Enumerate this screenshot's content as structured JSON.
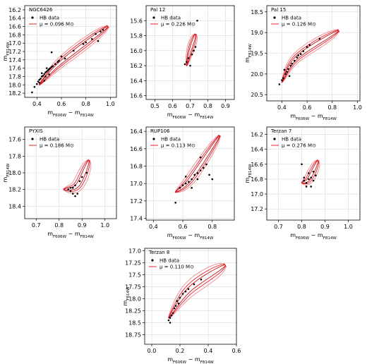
{
  "chart_data": [
    {
      "type": "scatter",
      "title": "NGC6426",
      "xlim": [
        0.3,
        1.05
      ],
      "ylim": [
        18.3,
        16.1
      ],
      "xticks": [
        0.4,
        0.6,
        0.8,
        1.0
      ],
      "yticks": [
        16.2,
        16.4,
        16.6,
        16.8,
        17.0,
        17.2,
        17.4,
        17.6,
        17.8,
        18.0,
        18.2
      ],
      "xlabel": "m_F606W − m_F814W",
      "ylabel": "m_F814W",
      "legend": [
        "HB data",
        "μ = 0.096 M⊙"
      ],
      "legend_position": "top-left",
      "grid": true,
      "contour": {
        "center": [
          [
            0.42,
            18.0
          ],
          [
            0.6,
            17.45
          ],
          [
            0.98,
            16.6
          ]
        ],
        "widths": [
          0.018,
          0.04,
          0.07
        ],
        "color": "#e8202a"
      },
      "hb_data": [
        [
          0.38,
          18.05
        ],
        [
          0.4,
          17.98
        ],
        [
          0.41,
          17.92
        ],
        [
          0.42,
          17.88
        ],
        [
          0.43,
          17.85
        ],
        [
          0.44,
          17.8
        ],
        [
          0.45,
          17.78
        ],
        [
          0.46,
          17.74
        ],
        [
          0.47,
          17.7
        ],
        [
          0.48,
          17.68
        ],
        [
          0.49,
          17.65
        ],
        [
          0.5,
          17.62
        ],
        [
          0.51,
          17.6
        ],
        [
          0.52,
          17.57
        ],
        [
          0.53,
          17.55
        ],
        [
          0.55,
          17.5
        ],
        [
          0.57,
          17.45
        ],
        [
          0.44,
          17.72
        ],
        [
          0.47,
          17.8
        ],
        [
          0.52,
          17.22
        ],
        [
          0.6,
          17.32
        ],
        [
          0.63,
          17.37
        ],
        [
          0.7,
          17.18
        ],
        [
          0.78,
          17.02
        ],
        [
          0.8,
          16.98
        ],
        [
          0.85,
          16.9
        ],
        [
          0.88,
          16.78
        ],
        [
          0.92,
          16.72
        ],
        [
          0.94,
          16.68
        ],
        [
          0.9,
          16.95
        ],
        [
          0.36,
          18.18
        ],
        [
          0.46,
          17.9
        ],
        [
          0.5,
          17.75
        ],
        [
          0.42,
          17.95
        ],
        [
          0.48,
          17.6
        ],
        [
          0.58,
          17.42
        ]
      ]
    },
    {
      "type": "scatter",
      "title": "Pal 12",
      "xlim": [
        0.45,
        0.95
      ],
      "ylim": [
        16.65,
        15.4
      ],
      "xticks": [
        0.5,
        0.6,
        0.7,
        0.8,
        0.9
      ],
      "yticks": [
        15.6,
        15.8,
        16.0,
        16.2,
        16.4,
        16.6
      ],
      "xlabel": "m_F606W − m_F814W",
      "ylabel": "",
      "legend": [
        "HB data",
        "μ = 0.226 M⊙"
      ],
      "legend_position": "top-left",
      "grid": true,
      "contour": {
        "center": [
          [
            0.68,
            16.2
          ],
          [
            0.7,
            16.0
          ],
          [
            0.73,
            15.78
          ]
        ],
        "widths": [
          0.01,
          0.02,
          0.032
        ],
        "color": "#e8202a"
      },
      "hb_data": [
        [
          0.68,
          16.15
        ],
        [
          0.7,
          16.2
        ],
        [
          0.71,
          16.05
        ],
        [
          0.72,
          16.0
        ],
        [
          0.69,
          16.1
        ],
        [
          0.73,
          15.95
        ],
        [
          0.74,
          15.6
        ],
        [
          0.67,
          16.18
        ]
      ]
    },
    {
      "type": "scatter",
      "title": "Pal 15",
      "xlim": [
        0.28,
        1.02
      ],
      "ylim": [
        20.65,
        18.35
      ],
      "xticks": [
        0.4,
        0.6,
        0.8,
        1.0
      ],
      "yticks": [
        18.5,
        19.0,
        19.5,
        20.0,
        20.5
      ],
      "xlabel": "m_F606W − m_F814W",
      "ylabel": "m_F814W",
      "legend": [
        "HB data",
        "μ = 0.126 M⊙"
      ],
      "legend_position": "top-left",
      "grid": true,
      "contour": {
        "center": [
          [
            0.4,
            20.2
          ],
          [
            0.52,
            19.6
          ],
          [
            0.85,
            18.95
          ]
        ],
        "widths": [
          0.016,
          0.038,
          0.065
        ],
        "color": "#e8202a"
      },
      "hb_data": [
        [
          0.38,
          20.25
        ],
        [
          0.4,
          20.15
        ],
        [
          0.41,
          20.1
        ],
        [
          0.43,
          20.0
        ],
        [
          0.44,
          19.95
        ],
        [
          0.45,
          19.88
        ],
        [
          0.47,
          19.8
        ],
        [
          0.48,
          19.75
        ],
        [
          0.5,
          19.68
        ],
        [
          0.52,
          19.6
        ],
        [
          0.55,
          19.52
        ],
        [
          0.57,
          19.45
        ],
        [
          0.6,
          19.35
        ],
        [
          0.62,
          19.3
        ],
        [
          0.7,
          19.15
        ],
        [
          0.42,
          19.9
        ],
        [
          0.46,
          20.05
        ],
        [
          0.53,
          19.55
        ]
      ]
    },
    {
      "type": "scatter",
      "title": "PYXIS",
      "xlim": [
        0.65,
        1.05
      ],
      "ylim": [
        18.55,
        17.45
      ],
      "xticks": [
        0.7,
        0.8,
        0.9,
        1.0
      ],
      "yticks": [
        17.6,
        17.8,
        18.0,
        18.2,
        18.4
      ],
      "xlabel": "m_F606W − m_F814W",
      "ylabel": "m_F814W",
      "legend": [
        "HB data",
        "μ = 0.186 M⊙"
      ],
      "legend_position": "top-left",
      "grid": true,
      "contour": {
        "center": [
          [
            0.82,
            18.2
          ],
          [
            0.88,
            18.15
          ],
          [
            0.93,
            17.85
          ]
        ],
        "widths": [
          0.018,
          0.025,
          0.035
        ],
        "color": "#e8202a"
      },
      "hb_data": [
        [
          0.84,
          18.2
        ],
        [
          0.85,
          18.22
        ],
        [
          0.86,
          18.18
        ],
        [
          0.87,
          18.15
        ],
        [
          0.88,
          18.25
        ],
        [
          0.86,
          18.25
        ],
        [
          0.89,
          18.1
        ],
        [
          0.9,
          18.05
        ],
        [
          0.92,
          18.0
        ],
        [
          0.85,
          18.18
        ],
        [
          0.87,
          18.28
        ]
      ]
    },
    {
      "type": "scatter",
      "title": "RUP106",
      "xlim": [
        0.35,
        0.95
      ],
      "ylim": [
        17.42,
        16.35
      ],
      "xticks": [
        0.4,
        0.6,
        0.8
      ],
      "yticks": [
        16.4,
        16.6,
        16.8,
        17.0,
        17.2,
        17.4
      ],
      "xlabel": "m_F606W − m_F814W",
      "ylabel": "",
      "legend": [
        "HB data",
        "μ = 0.113 M⊙"
      ],
      "legend_position": "top-left",
      "grid": true,
      "contour": {
        "center": [
          [
            0.55,
            17.1
          ],
          [
            0.65,
            16.95
          ],
          [
            0.85,
            16.45
          ]
        ],
        "widths": [
          0.02,
          0.035,
          0.045
        ],
        "color": "#e8202a"
      },
      "hb_data": [
        [
          0.58,
          17.05
        ],
        [
          0.6,
          17.02
        ],
        [
          0.62,
          17.0
        ],
        [
          0.64,
          16.98
        ],
        [
          0.66,
          16.95
        ],
        [
          0.68,
          16.9
        ],
        [
          0.7,
          16.88
        ],
        [
          0.72,
          16.85
        ],
        [
          0.74,
          16.82
        ],
        [
          0.76,
          16.78
        ],
        [
          0.78,
          16.9
        ],
        [
          0.8,
          16.95
        ],
        [
          0.72,
          16.7
        ],
        [
          0.55,
          17.22
        ],
        [
          0.66,
          17.05
        ],
        [
          0.7,
          16.95
        ],
        [
          0.62,
          16.92
        ]
      ]
    },
    {
      "type": "scatter",
      "title": "Terzan 7",
      "xlim": [
        0.65,
        1.05
      ],
      "ylim": [
        17.35,
        16.1
      ],
      "xticks": [
        0.7,
        0.8,
        0.9,
        1.0
      ],
      "yticks": [
        16.2,
        16.4,
        16.6,
        16.8,
        17.0,
        17.2
      ],
      "xlabel": "m_F606W − m_F814W",
      "ylabel": "m_F814W",
      "legend": [
        "HB data",
        "μ = 0.276 M⊙"
      ],
      "legend_position": "top-left",
      "grid": true,
      "contour": {
        "center": [
          [
            0.8,
            16.85
          ],
          [
            0.83,
            16.8
          ],
          [
            0.87,
            16.55
          ]
        ],
        "widths": [
          0.012,
          0.02,
          0.03
        ],
        "color": "#e8202a"
      },
      "hb_data": [
        [
          0.81,
          16.82
        ],
        [
          0.82,
          16.85
        ],
        [
          0.83,
          16.8
        ],
        [
          0.84,
          16.78
        ],
        [
          0.85,
          16.82
        ],
        [
          0.83,
          16.72
        ],
        [
          0.8,
          16.6
        ],
        [
          0.86,
          16.75
        ],
        [
          0.84,
          16.9
        ],
        [
          0.82,
          16.9
        ],
        [
          0.85,
          16.7
        ],
        [
          0.81,
          16.78
        ]
      ]
    },
    {
      "type": "scatter",
      "title": "Terzan 8",
      "xlim": [
        -0.05,
        0.6
      ],
      "ylim": [
        18.95,
        16.95
      ],
      "xticks": [
        0.0,
        0.2,
        0.4,
        0.6
      ],
      "yticks": [
        17.0,
        17.25,
        17.5,
        17.75,
        18.0,
        18.25,
        18.5,
        18.75
      ],
      "xlabel": "m_F606W − m_F814W",
      "ylabel": "m_F814W",
      "legend": [
        "HB data",
        "μ = 0.110 M⊙"
      ],
      "legend_position": "top-left",
      "grid": true,
      "contour": {
        "center": [
          [
            0.12,
            18.4
          ],
          [
            0.27,
            17.8
          ],
          [
            0.52,
            17.3
          ]
        ],
        "widths": [
          0.022,
          0.05,
          0.08
        ],
        "color": "#e8202a"
      },
      "hb_data": [
        [
          0.12,
          18.45
        ],
        [
          0.13,
          18.4
        ],
        [
          0.14,
          18.35
        ],
        [
          0.15,
          18.3
        ],
        [
          0.16,
          18.2
        ],
        [
          0.17,
          18.15
        ],
        [
          0.18,
          18.05
        ],
        [
          0.2,
          17.98
        ],
        [
          0.22,
          17.9
        ],
        [
          0.24,
          17.85
        ],
        [
          0.26,
          17.8
        ],
        [
          0.3,
          17.7
        ],
        [
          0.35,
          17.6
        ],
        [
          0.13,
          18.5
        ],
        [
          0.19,
          18.1
        ]
      ]
    }
  ]
}
